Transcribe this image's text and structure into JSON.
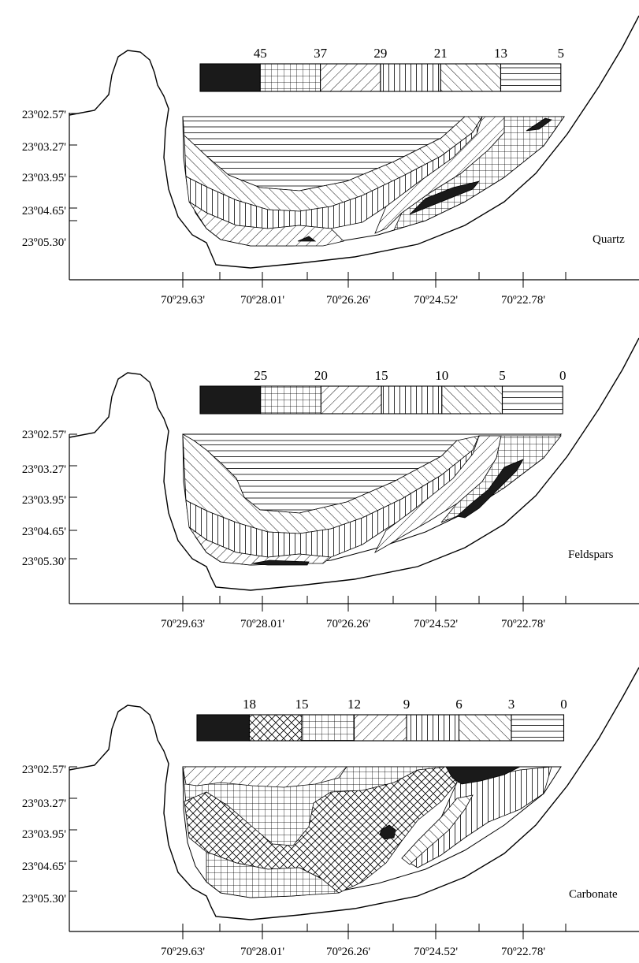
{
  "panels": [
    {
      "title": "Quartz",
      "legend_values": [
        "45",
        "37",
        "29",
        "21",
        "13",
        "5"
      ],
      "legend_patterns": [
        "solid",
        "grid",
        "diag-right",
        "vertical",
        "diag-left",
        "horizontal"
      ]
    },
    {
      "title": "Feldspars",
      "legend_values": [
        "25",
        "20",
        "15",
        "10",
        "5",
        "0"
      ],
      "legend_patterns": [
        "solid",
        "grid",
        "diag-right",
        "vertical",
        "diag-left",
        "horizontal"
      ]
    },
    {
      "title": "Carbonate",
      "legend_values": [
        "18",
        "15",
        "12",
        "9",
        "6",
        "3",
        "0"
      ],
      "legend_patterns": [
        "solid",
        "crosshatch",
        "grid",
        "diag-right",
        "vertical",
        "diag-left",
        "horizontal"
      ]
    }
  ],
  "lat_ticks": [
    "23º02.57'",
    "23º03.27'",
    "23º03.95'",
    "23º04.65'",
    "23º05.30'"
  ],
  "lon_ticks": [
    "70º29.63'",
    "70º28.01'",
    "70º26.26'",
    "70º24.52'",
    "70º22.78'"
  ],
  "colors": {
    "ink": "#000000",
    "paper": "#ffffff"
  }
}
